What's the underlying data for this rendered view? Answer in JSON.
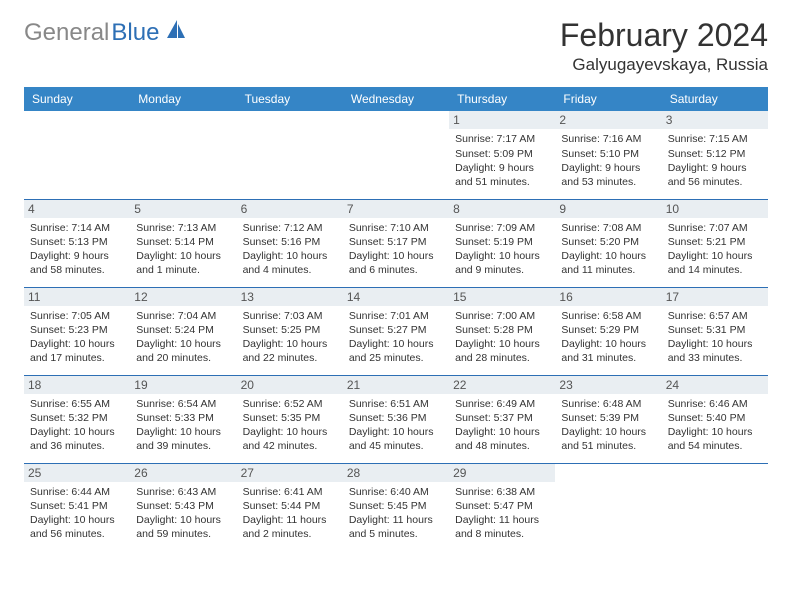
{
  "brand": {
    "part1": "General",
    "part2": "Blue"
  },
  "title": "February 2024",
  "location": "Galyugayevskaya, Russia",
  "colors": {
    "header_bg": "#3585c6",
    "header_text": "#ffffff",
    "border": "#2d6fb5",
    "daynum_bg": "#e9eef2",
    "text": "#333333",
    "logo_gray": "#888888",
    "logo_blue": "#2d6fb5",
    "page_bg": "#ffffff"
  },
  "typography": {
    "title_fontsize": 32,
    "location_fontsize": 17,
    "dayheader_fontsize": 12,
    "cell_fontsize": 10.5
  },
  "day_headers": [
    "Sunday",
    "Monday",
    "Tuesday",
    "Wednesday",
    "Thursday",
    "Friday",
    "Saturday"
  ],
  "weeks": [
    [
      {
        "n": "",
        "sunrise": "",
        "sunset": "",
        "daylight": ""
      },
      {
        "n": "",
        "sunrise": "",
        "sunset": "",
        "daylight": ""
      },
      {
        "n": "",
        "sunrise": "",
        "sunset": "",
        "daylight": ""
      },
      {
        "n": "",
        "sunrise": "",
        "sunset": "",
        "daylight": ""
      },
      {
        "n": "1",
        "sunrise": "Sunrise: 7:17 AM",
        "sunset": "Sunset: 5:09 PM",
        "daylight": "Daylight: 9 hours and 51 minutes."
      },
      {
        "n": "2",
        "sunrise": "Sunrise: 7:16 AM",
        "sunset": "Sunset: 5:10 PM",
        "daylight": "Daylight: 9 hours and 53 minutes."
      },
      {
        "n": "3",
        "sunrise": "Sunrise: 7:15 AM",
        "sunset": "Sunset: 5:12 PM",
        "daylight": "Daylight: 9 hours and 56 minutes."
      }
    ],
    [
      {
        "n": "4",
        "sunrise": "Sunrise: 7:14 AM",
        "sunset": "Sunset: 5:13 PM",
        "daylight": "Daylight: 9 hours and 58 minutes."
      },
      {
        "n": "5",
        "sunrise": "Sunrise: 7:13 AM",
        "sunset": "Sunset: 5:14 PM",
        "daylight": "Daylight: 10 hours and 1 minute."
      },
      {
        "n": "6",
        "sunrise": "Sunrise: 7:12 AM",
        "sunset": "Sunset: 5:16 PM",
        "daylight": "Daylight: 10 hours and 4 minutes."
      },
      {
        "n": "7",
        "sunrise": "Sunrise: 7:10 AM",
        "sunset": "Sunset: 5:17 PM",
        "daylight": "Daylight: 10 hours and 6 minutes."
      },
      {
        "n": "8",
        "sunrise": "Sunrise: 7:09 AM",
        "sunset": "Sunset: 5:19 PM",
        "daylight": "Daylight: 10 hours and 9 minutes."
      },
      {
        "n": "9",
        "sunrise": "Sunrise: 7:08 AM",
        "sunset": "Sunset: 5:20 PM",
        "daylight": "Daylight: 10 hours and 11 minutes."
      },
      {
        "n": "10",
        "sunrise": "Sunrise: 7:07 AM",
        "sunset": "Sunset: 5:21 PM",
        "daylight": "Daylight: 10 hours and 14 minutes."
      }
    ],
    [
      {
        "n": "11",
        "sunrise": "Sunrise: 7:05 AM",
        "sunset": "Sunset: 5:23 PM",
        "daylight": "Daylight: 10 hours and 17 minutes."
      },
      {
        "n": "12",
        "sunrise": "Sunrise: 7:04 AM",
        "sunset": "Sunset: 5:24 PM",
        "daylight": "Daylight: 10 hours and 20 minutes."
      },
      {
        "n": "13",
        "sunrise": "Sunrise: 7:03 AM",
        "sunset": "Sunset: 5:25 PM",
        "daylight": "Daylight: 10 hours and 22 minutes."
      },
      {
        "n": "14",
        "sunrise": "Sunrise: 7:01 AM",
        "sunset": "Sunset: 5:27 PM",
        "daylight": "Daylight: 10 hours and 25 minutes."
      },
      {
        "n": "15",
        "sunrise": "Sunrise: 7:00 AM",
        "sunset": "Sunset: 5:28 PM",
        "daylight": "Daylight: 10 hours and 28 minutes."
      },
      {
        "n": "16",
        "sunrise": "Sunrise: 6:58 AM",
        "sunset": "Sunset: 5:29 PM",
        "daylight": "Daylight: 10 hours and 31 minutes."
      },
      {
        "n": "17",
        "sunrise": "Sunrise: 6:57 AM",
        "sunset": "Sunset: 5:31 PM",
        "daylight": "Daylight: 10 hours and 33 minutes."
      }
    ],
    [
      {
        "n": "18",
        "sunrise": "Sunrise: 6:55 AM",
        "sunset": "Sunset: 5:32 PM",
        "daylight": "Daylight: 10 hours and 36 minutes."
      },
      {
        "n": "19",
        "sunrise": "Sunrise: 6:54 AM",
        "sunset": "Sunset: 5:33 PM",
        "daylight": "Daylight: 10 hours and 39 minutes."
      },
      {
        "n": "20",
        "sunrise": "Sunrise: 6:52 AM",
        "sunset": "Sunset: 5:35 PM",
        "daylight": "Daylight: 10 hours and 42 minutes."
      },
      {
        "n": "21",
        "sunrise": "Sunrise: 6:51 AM",
        "sunset": "Sunset: 5:36 PM",
        "daylight": "Daylight: 10 hours and 45 minutes."
      },
      {
        "n": "22",
        "sunrise": "Sunrise: 6:49 AM",
        "sunset": "Sunset: 5:37 PM",
        "daylight": "Daylight: 10 hours and 48 minutes."
      },
      {
        "n": "23",
        "sunrise": "Sunrise: 6:48 AM",
        "sunset": "Sunset: 5:39 PM",
        "daylight": "Daylight: 10 hours and 51 minutes."
      },
      {
        "n": "24",
        "sunrise": "Sunrise: 6:46 AM",
        "sunset": "Sunset: 5:40 PM",
        "daylight": "Daylight: 10 hours and 54 minutes."
      }
    ],
    [
      {
        "n": "25",
        "sunrise": "Sunrise: 6:44 AM",
        "sunset": "Sunset: 5:41 PM",
        "daylight": "Daylight: 10 hours and 56 minutes."
      },
      {
        "n": "26",
        "sunrise": "Sunrise: 6:43 AM",
        "sunset": "Sunset: 5:43 PM",
        "daylight": "Daylight: 10 hours and 59 minutes."
      },
      {
        "n": "27",
        "sunrise": "Sunrise: 6:41 AM",
        "sunset": "Sunset: 5:44 PM",
        "daylight": "Daylight: 11 hours and 2 minutes."
      },
      {
        "n": "28",
        "sunrise": "Sunrise: 6:40 AM",
        "sunset": "Sunset: 5:45 PM",
        "daylight": "Daylight: 11 hours and 5 minutes."
      },
      {
        "n": "29",
        "sunrise": "Sunrise: 6:38 AM",
        "sunset": "Sunset: 5:47 PM",
        "daylight": "Daylight: 11 hours and 8 minutes."
      },
      {
        "n": "",
        "sunrise": "",
        "sunset": "",
        "daylight": ""
      },
      {
        "n": "",
        "sunrise": "",
        "sunset": "",
        "daylight": ""
      }
    ]
  ]
}
